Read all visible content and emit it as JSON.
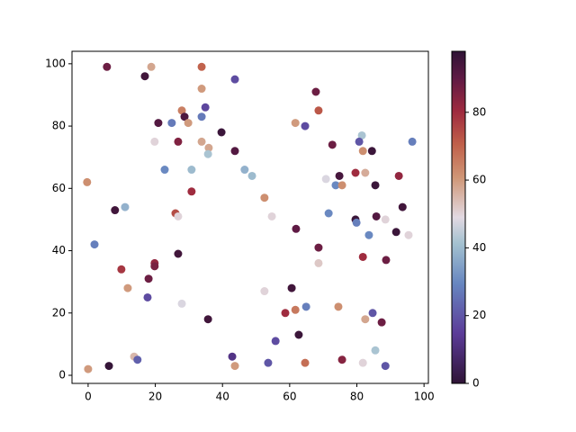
{
  "chart_data": {
    "type": "scatter",
    "colormap": "twilight_shifted",
    "xlim": [
      -4.8,
      101.3
    ],
    "ylim": [
      -2.6,
      104
    ],
    "xticks": [
      0,
      20,
      40,
      60,
      80,
      100
    ],
    "yticks": [
      0,
      20,
      40,
      60,
      80,
      100
    ],
    "clim": [
      0,
      98
    ],
    "cticks": [
      0,
      20,
      40,
      60,
      80
    ],
    "x": [
      5.6,
      18.8,
      33.8,
      16.9,
      43.7,
      33.8,
      67.8,
      34.9,
      27.9,
      68.6,
      28.7,
      33.8,
      20.9,
      24.9,
      29.8,
      61.7,
      64.6,
      39.7,
      81.5,
      19.8,
      26.8,
      33.8,
      96.5,
      80.7,
      72.7,
      35.9,
      43.7,
      81.8,
      84.5,
      35.7,
      22.8,
      30.8,
      46.6,
      48.8,
      79.6,
      82.5,
      74.8,
      70.8,
      92.5,
      -0.3,
      73.7,
      75.6,
      85.5,
      52.5,
      30.8,
      8.0,
      11.0,
      26.0,
      26.8,
      54.7,
      71.6,
      93.6,
      79.6,
      79.9,
      85.8,
      88.5,
      1.9,
      61.9,
      83.6,
      91.7,
      95.4,
      68.6,
      26.8,
      81.8,
      88.7,
      68.6,
      9.9,
      19.8,
      19.8,
      18.0,
      11.8,
      52.5,
      60.6,
      17.7,
      27.9,
      64.9,
      61.7,
      58.7,
      74.5,
      84.7,
      87.4,
      82.5,
      35.7,
      62.7,
      55.8,
      85.5,
      13.7,
      14.7,
      42.9,
      6.2,
      43.7,
      53.6,
      64.6,
      75.6,
      81.8,
      88.5,
      0.0
    ],
    "y": [
      99,
      99,
      99,
      96,
      95,
      92,
      91,
      86,
      85,
      85,
      83,
      83,
      81,
      81,
      81,
      81,
      80,
      78,
      77,
      75,
      75,
      75,
      75,
      75,
      74,
      73,
      72,
      72,
      72,
      71,
      66,
      66,
      66,
      64,
      65,
      65,
      64,
      63,
      64,
      62,
      61,
      61,
      61,
      57,
      59,
      53,
      54,
      52,
      51,
      51,
      52,
      54,
      50,
      49,
      51,
      50,
      42,
      47,
      45,
      46,
      45,
      41,
      39,
      38,
      37,
      36,
      34,
      36,
      35,
      31,
      28,
      27,
      28,
      25,
      23,
      22,
      21,
      20,
      22,
      20,
      17,
      18,
      18,
      13,
      11,
      8,
      6,
      5,
      6,
      3,
      3,
      4,
      4,
      5,
      4,
      3,
      2
    ],
    "c": [
      88,
      58,
      70,
      95,
      18,
      60,
      88,
      17,
      65,
      72,
      93,
      27,
      92,
      27,
      60,
      60,
      18,
      96,
      42,
      50,
      85,
      58,
      28,
      20,
      88,
      58,
      92,
      62,
      96,
      42,
      30,
      40,
      38,
      40,
      80,
      57,
      94,
      48,
      82,
      62,
      30,
      62,
      96,
      62,
      80,
      95,
      38,
      74,
      50,
      50,
      30,
      95,
      96,
      28,
      92,
      50,
      28,
      90,
      30,
      96,
      50,
      88,
      95,
      80,
      88,
      52,
      78,
      82,
      86,
      88,
      60,
      50,
      95,
      18,
      48,
      28,
      66,
      80,
      62,
      20,
      88,
      58,
      95,
      96,
      18,
      42,
      55,
      22,
      12,
      97,
      60,
      20,
      68,
      84,
      50,
      20,
      60
    ]
  }
}
